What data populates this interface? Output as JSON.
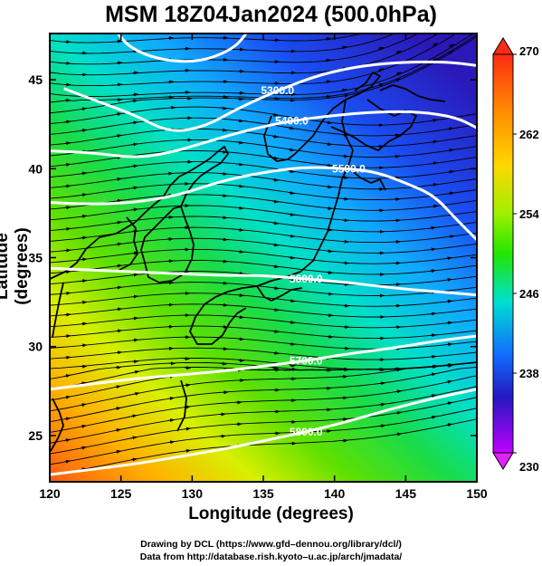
{
  "figure": {
    "title": "MSM 18Z04Jan2024 (500.0hPa)",
    "xlabel": "Longitude (degrees)",
    "ylabel": "Latitude  (degrees)",
    "credit_line1": "Drawing by DCL (https://www.gfd–dennou.org/library/dcl/)",
    "credit_line2": "Data from http://database.rish.kyoto–u.ac.jp/arch/jmadata/"
  },
  "colorbar": {
    "min": 230,
    "max": 270,
    "tick_labels": [
      "270",
      "262",
      "254",
      "246",
      "238",
      "230"
    ],
    "colors": [
      "#ff2b12",
      "#ffb000",
      "#e6ff00",
      "#2ee600",
      "#00e0e6",
      "#1060ff",
      "#2010b0",
      "#b000ff"
    ]
  },
  "chart_data": {
    "type": "heatmap",
    "title": "MSM 18Z04Jan2024 (500.0hPa)",
    "xlabel": "Longitude (degrees)",
    "ylabel": "Latitude  (degrees)",
    "xlim": [
      120,
      150
    ],
    "ylim": [
      22.4,
      47.6
    ],
    "x_ticks": [
      "120",
      "125",
      "130",
      "135",
      "140",
      "145",
      "150"
    ],
    "y_ticks": [
      "25",
      "30",
      "35",
      "40",
      "45"
    ],
    "color_variable_range": [
      230,
      270
    ],
    "contour_labels": [
      "5300.0",
      "5400.0",
      "5500.0",
      "5600.0",
      "5700.0",
      "5800.0"
    ],
    "contours": [
      {
        "level": "5300.0",
        "lonlat": [
          [
            121,
            44.5
          ],
          [
            124,
            43.6
          ],
          [
            126,
            43.0
          ],
          [
            128.5,
            42.0
          ],
          [
            131,
            42.4
          ],
          [
            133,
            43.3
          ],
          [
            136,
            44.4
          ],
          [
            139,
            45.3
          ],
          [
            142,
            45.8
          ],
          [
            145,
            46.0
          ],
          [
            148,
            46.0
          ],
          [
            150,
            45.8
          ]
        ]
      },
      {
        "level": "5400.0",
        "lonlat": [
          [
            120,
            41.0
          ],
          [
            123,
            40.9
          ],
          [
            126,
            40.6
          ],
          [
            128.5,
            40.9
          ],
          [
            131,
            41.5
          ],
          [
            134,
            42.2
          ],
          [
            137,
            42.7
          ],
          [
            140,
            43.0
          ],
          [
            143,
            43.2
          ],
          [
            146,
            43.2
          ],
          [
            148.5,
            42.9
          ],
          [
            150,
            42.3
          ]
        ]
      },
      {
        "level": "5500.0",
        "lonlat": [
          [
            120,
            38.1
          ],
          [
            123,
            38.0
          ],
          [
            126,
            38.1
          ],
          [
            129,
            38.5
          ],
          [
            132,
            39.3
          ],
          [
            135,
            39.8
          ],
          [
            138,
            40.1
          ],
          [
            141,
            40.0
          ],
          [
            143,
            39.8
          ],
          [
            145,
            39.2
          ],
          [
            147,
            38.5
          ],
          [
            148.5,
            37.2
          ],
          [
            150,
            36.0
          ]
        ]
      },
      {
        "level": "5600.0",
        "lonlat": [
          [
            120,
            34.4
          ],
          [
            123,
            34.3
          ],
          [
            126,
            34.2
          ],
          [
            129,
            34.1
          ],
          [
            132,
            34.0
          ],
          [
            135,
            34.0
          ],
          [
            138,
            33.8
          ],
          [
            141,
            33.6
          ],
          [
            144,
            33.3
          ],
          [
            147,
            33.1
          ],
          [
            150,
            32.9
          ]
        ]
      },
      {
        "level": "5700.0",
        "lonlat": [
          [
            120,
            27.6
          ],
          [
            123,
            27.9
          ],
          [
            126,
            28.2
          ],
          [
            129,
            28.4
          ],
          [
            132,
            28.6
          ],
          [
            135,
            28.9
          ],
          [
            138,
            29.2
          ],
          [
            141,
            29.6
          ],
          [
            144,
            29.9
          ],
          [
            147,
            30.3
          ],
          [
            150,
            30.6
          ]
        ]
      },
      {
        "level": "5800.0",
        "lonlat": [
          [
            120,
            22.8
          ],
          [
            123,
            23.1
          ],
          [
            126,
            23.4
          ],
          [
            129,
            23.8
          ],
          [
            132,
            24.2
          ],
          [
            135,
            24.7
          ],
          [
            138,
            25.2
          ],
          [
            141,
            25.8
          ],
          [
            144,
            26.5
          ],
          [
            147,
            27.1
          ],
          [
            150,
            27.6
          ]
        ]
      },
      {
        "level": "",
        "lonlat": [
          [
            124.8,
            47.6
          ],
          [
            125.5,
            46.9
          ],
          [
            127,
            46.3
          ],
          [
            129,
            46.0
          ],
          [
            131,
            46.1
          ],
          [
            133,
            46.8
          ],
          [
            133.8,
            47.6
          ]
        ]
      }
    ],
    "grid": false,
    "legend": "colorbar right"
  }
}
